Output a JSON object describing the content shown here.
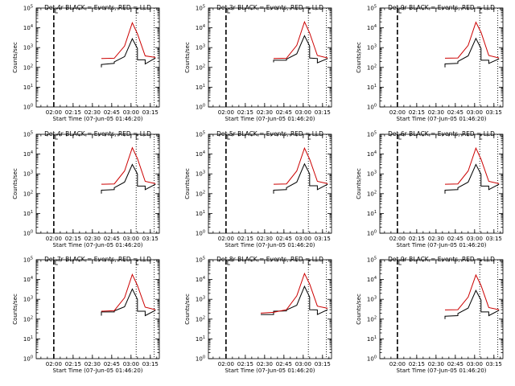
{
  "chart_data": [
    {
      "type": "line",
      "title": "Det 4r BLACK = Events, RED = LLD",
      "xlabel": "Start Time (07-Jun-05 01:46:20)",
      "ylabel": "Counts/sec",
      "yscale": "log",
      "ylim": [
        1,
        100000
      ],
      "xlim": [
        "01:46:20",
        "03:22:00"
      ],
      "xticks": [
        "02:00",
        "02:15",
        "02:30",
        "02:45",
        "03:00",
        "03:15"
      ],
      "yticks": [
        "10^0",
        "10^1",
        "10^2",
        "10^3",
        "10^4",
        "10^5"
      ],
      "markers": {
        "dashed": "02:00",
        "dotted": [
          "03:04",
          "03:18"
        ]
      },
      "series": [
        {
          "color": "#000000",
          "x": [
            "02:37",
            "02:37",
            "02:47",
            "02:47",
            "02:55",
            "03:01",
            "03:05",
            "03:05",
            "03:11",
            "03:11",
            "03:19"
          ],
          "y": [
            100,
            140,
            160,
            190,
            350,
            2800,
            900,
            240,
            240,
            150,
            300
          ]
        },
        {
          "color": "#cc0000",
          "x": [
            "02:37",
            "02:47",
            "02:55",
            "03:01",
            "03:05",
            "03:11",
            "03:19"
          ],
          "y": [
            280,
            290,
            1200,
            18000,
            5000,
            380,
            320
          ]
        }
      ]
    },
    {
      "type": "line",
      "title": "Det 3r BLACK = Events, RED = LLD",
      "xlabel": "Start Time (07-Jun-05 01:46:20)",
      "ylabel": "Counts/sec",
      "yscale": "log",
      "ylim": [
        1,
        100000
      ],
      "xlim": [
        "01:46:20",
        "03:22:00"
      ],
      "xticks": [
        "02:00",
        "02:15",
        "02:30",
        "02:45",
        "03:00",
        "03:15"
      ],
      "yticks": [
        "10^0",
        "10^1",
        "10^2",
        "10^3",
        "10^4",
        "10^5"
      ],
      "markers": {
        "dashed": "02:00",
        "dotted": [
          "03:04",
          "03:18"
        ]
      },
      "series": [
        {
          "color": "#000000",
          "x": [
            "02:37",
            "02:37",
            "02:47",
            "02:47",
            "02:55",
            "03:01",
            "03:05",
            "03:05",
            "03:11",
            "03:11",
            "03:19"
          ],
          "y": [
            180,
            230,
            230,
            260,
            480,
            4000,
            1200,
            300,
            280,
            170,
            280
          ]
        },
        {
          "color": "#cc0000",
          "x": [
            "02:37",
            "02:47",
            "02:55",
            "03:01",
            "03:05",
            "03:11",
            "03:19"
          ],
          "y": [
            280,
            290,
            1300,
            20000,
            5500,
            400,
            300
          ]
        }
      ]
    },
    {
      "type": "line",
      "title": "Det 9r BLACK = Events, RED = LLD",
      "xlabel": "Start Time (07-Jun-05 01:46:20)",
      "ylabel": "Counts/sec",
      "yscale": "log",
      "ylim": [
        1,
        100000
      ],
      "xlim": [
        "01:46:20",
        "03:22:00"
      ],
      "xticks": [
        "02:00",
        "02:15",
        "02:30",
        "02:45",
        "03:00",
        "03:15"
      ],
      "yticks": [
        "10^0",
        "10^1",
        "10^2",
        "10^3",
        "10^4",
        "10^5"
      ],
      "markers": {
        "dashed": "02:00",
        "dotted": [
          "03:04",
          "03:18"
        ]
      },
      "series": [
        {
          "color": "#000000",
          "x": [
            "02:37",
            "02:37",
            "02:47",
            "02:47",
            "02:55",
            "03:01",
            "03:05",
            "03:05",
            "03:11",
            "03:11",
            "03:19"
          ],
          "y": [
            100,
            150,
            160,
            200,
            380,
            2900,
            900,
            230,
            230,
            160,
            270
          ]
        },
        {
          "color": "#cc0000",
          "x": [
            "02:37",
            "02:47",
            "02:55",
            "03:01",
            "03:05",
            "03:11",
            "03:19"
          ],
          "y": [
            290,
            300,
            1300,
            19000,
            6000,
            400,
            300
          ]
        }
      ]
    },
    {
      "type": "line",
      "title": "Det 4r BLACK = Events, RED = LLD",
      "xlabel": "Start Time (07-Jun-05 01:46:20)",
      "ylabel": "Counts/sec",
      "yscale": "log",
      "ylim": [
        1,
        100000
      ],
      "xlim": [
        "01:46:20",
        "03:22:00"
      ],
      "xticks": [
        "02:00",
        "02:15",
        "02:30",
        "02:45",
        "03:00",
        "03:15"
      ],
      "yticks": [
        "10^0",
        "10^1",
        "10^2",
        "10^3",
        "10^4",
        "10^5"
      ],
      "markers": {
        "dashed": "02:00",
        "dotted": [
          "03:04",
          "03:18"
        ]
      },
      "series": [
        {
          "color": "#000000",
          "x": [
            "02:37",
            "02:37",
            "02:47",
            "02:47",
            "02:55",
            "03:01",
            "03:05",
            "03:05",
            "03:11",
            "03:11",
            "03:19"
          ],
          "y": [
            100,
            150,
            160,
            200,
            380,
            3000,
            1000,
            240,
            240,
            160,
            300
          ]
        },
        {
          "color": "#cc0000",
          "x": [
            "02:37",
            "02:47",
            "02:55",
            "03:01",
            "03:05",
            "03:11",
            "03:19"
          ],
          "y": [
            300,
            310,
            1400,
            21000,
            6000,
            420,
            320
          ]
        }
      ]
    },
    {
      "type": "line",
      "title": "Det 5r BLACK = Events, RED = LLD",
      "xlabel": "Start Time (07-Jun-05 01:46:20)",
      "ylabel": "Counts/sec",
      "yscale": "log",
      "ylim": [
        1,
        100000
      ],
      "xlim": [
        "01:46:20",
        "03:22:00"
      ],
      "xticks": [
        "02:00",
        "02:15",
        "02:30",
        "02:45",
        "03:00",
        "03:15"
      ],
      "yticks": [
        "10^0",
        "10^1",
        "10^2",
        "10^3",
        "10^4",
        "10^5"
      ],
      "markers": {
        "dashed": "02:00",
        "dotted": [
          "03:04",
          "03:18"
        ]
      },
      "series": [
        {
          "color": "#000000",
          "x": [
            "02:37",
            "02:37",
            "02:47",
            "02:47",
            "02:55",
            "03:01",
            "03:05",
            "03:05",
            "03:11",
            "03:11",
            "03:19"
          ],
          "y": [
            100,
            150,
            160,
            200,
            380,
            3200,
            1000,
            250,
            250,
            160,
            300
          ]
        },
        {
          "color": "#cc0000",
          "x": [
            "02:37",
            "02:47",
            "02:55",
            "03:01",
            "03:05",
            "03:11",
            "03:19"
          ],
          "y": [
            300,
            310,
            1400,
            20000,
            5500,
            420,
            320
          ]
        }
      ]
    },
    {
      "type": "line",
      "title": "Det 6r BLACK = Events, RED = LLD",
      "xlabel": "Start Time (07-Jun-05 01:46:20)",
      "ylabel": "Counts/sec",
      "yscale": "log",
      "ylim": [
        1,
        100000
      ],
      "xlim": [
        "01:46:20",
        "03:22:00"
      ],
      "xticks": [
        "02:00",
        "02:15",
        "02:30",
        "02:45",
        "03:00",
        "03:15"
      ],
      "yticks": [
        "10^0",
        "10^1",
        "10^2",
        "10^3",
        "10^4",
        "10^5"
      ],
      "markers": {
        "dashed": "02:00",
        "dotted": [
          "03:04",
          "03:18"
        ]
      },
      "series": [
        {
          "color": "#000000",
          "x": [
            "02:37",
            "02:37",
            "02:47",
            "02:47",
            "02:55",
            "03:01",
            "03:05",
            "03:05",
            "03:11",
            "03:11",
            "03:19"
          ],
          "y": [
            100,
            150,
            160,
            200,
            380,
            3000,
            950,
            240,
            240,
            160,
            300
          ]
        },
        {
          "color": "#cc0000",
          "x": [
            "02:37",
            "02:47",
            "02:55",
            "03:01",
            "03:05",
            "03:11",
            "03:19"
          ],
          "y": [
            300,
            310,
            1400,
            20000,
            5500,
            420,
            320
          ]
        }
      ]
    },
    {
      "type": "line",
      "title": "Det 7r BLACK = Events, RED = LLD",
      "xlabel": "Start Time (07-Jun-05 01:46:20)",
      "ylabel": "Counts/sec",
      "yscale": "log",
      "ylim": [
        1,
        100000
      ],
      "xlim": [
        "01:46:20",
        "03:22:00"
      ],
      "xticks": [
        "02:00",
        "02:15",
        "02:30",
        "02:45",
        "03:00",
        "03:15"
      ],
      "yticks": [
        "10^0",
        "10^1",
        "10^2",
        "10^3",
        "10^4",
        "10^5"
      ],
      "markers": {
        "dashed": "02:00",
        "dotted": [
          "03:04",
          "03:18"
        ]
      },
      "series": [
        {
          "color": "#000000",
          "x": [
            "02:37",
            "02:37",
            "02:47",
            "02:47",
            "02:55",
            "03:01",
            "03:05",
            "03:05",
            "03:11",
            "03:11",
            "03:19"
          ],
          "y": [
            150,
            230,
            230,
            260,
            420,
            3300,
            1000,
            250,
            250,
            150,
            280
          ]
        },
        {
          "color": "#cc0000",
          "x": [
            "02:37",
            "02:47",
            "02:55",
            "03:01",
            "03:05",
            "03:11",
            "03:19"
          ],
          "y": [
            250,
            270,
            1200,
            18000,
            5000,
            400,
            300
          ]
        }
      ]
    },
    {
      "type": "line",
      "title": "Det 8r BLACK = Events, RED = LLD",
      "xlabel": "Start Time (07-Jun-05 01:46:20)",
      "ylabel": "Counts/sec",
      "yscale": "log",
      "ylim": [
        1,
        100000
      ],
      "xlim": [
        "01:46:20",
        "03:22:00"
      ],
      "xticks": [
        "02:00",
        "02:15",
        "02:30",
        "02:45",
        "03:00",
        "03:15"
      ],
      "yticks": [
        "10^0",
        "10^1",
        "10^2",
        "10^3",
        "10^4",
        "10^5"
      ],
      "markers": {
        "dashed": "02:00",
        "dotted": [
          "03:04",
          "03:18"
        ]
      },
      "series": [
        {
          "color": "#000000",
          "x": [
            "02:27",
            "02:37",
            "02:37",
            "02:47",
            "02:47",
            "02:55",
            "03:01",
            "03:05",
            "03:05",
            "03:11",
            "03:11",
            "03:19"
          ],
          "y": [
            170,
            170,
            250,
            260,
            290,
            500,
            4500,
            1300,
            300,
            290,
            170,
            300
          ]
        },
        {
          "color": "#cc0000",
          "x": [
            "02:27",
            "02:37",
            "02:47",
            "02:55",
            "03:01",
            "03:05",
            "03:11",
            "03:19"
          ],
          "y": [
            200,
            220,
            300,
            1500,
            20000,
            6000,
            450,
            350
          ]
        }
      ]
    },
    {
      "type": "line",
      "title": "Det 9r BLACK = Events, RED = LLD",
      "xlabel": "Start Time (07-Jun-05 01:46:20)",
      "ylabel": "Counts/sec",
      "yscale": "log",
      "ylim": [
        1,
        100000
      ],
      "xlim": [
        "01:46:20",
        "03:22:00"
      ],
      "xticks": [
        "02:00",
        "02:15",
        "02:30",
        "02:45",
        "03:00",
        "03:15"
      ],
      "yticks": [
        "10^0",
        "10^1",
        "10^2",
        "10^3",
        "10^4",
        "10^5"
      ],
      "markers": {
        "dashed": "02:00",
        "dotted": [
          "03:04",
          "03:18"
        ]
      },
      "series": [
        {
          "color": "#000000",
          "x": [
            "02:37",
            "02:37",
            "02:47",
            "02:47",
            "02:55",
            "03:01",
            "03:05",
            "03:05",
            "03:11",
            "03:11",
            "03:19"
          ],
          "y": [
            100,
            140,
            150,
            190,
            360,
            2800,
            900,
            230,
            230,
            150,
            280
          ]
        },
        {
          "color": "#cc0000",
          "x": [
            "02:37",
            "02:47",
            "02:55",
            "03:01",
            "03:05",
            "03:11",
            "03:19"
          ],
          "y": [
            290,
            300,
            1300,
            17000,
            5000,
            380,
            300
          ]
        }
      ]
    }
  ]
}
